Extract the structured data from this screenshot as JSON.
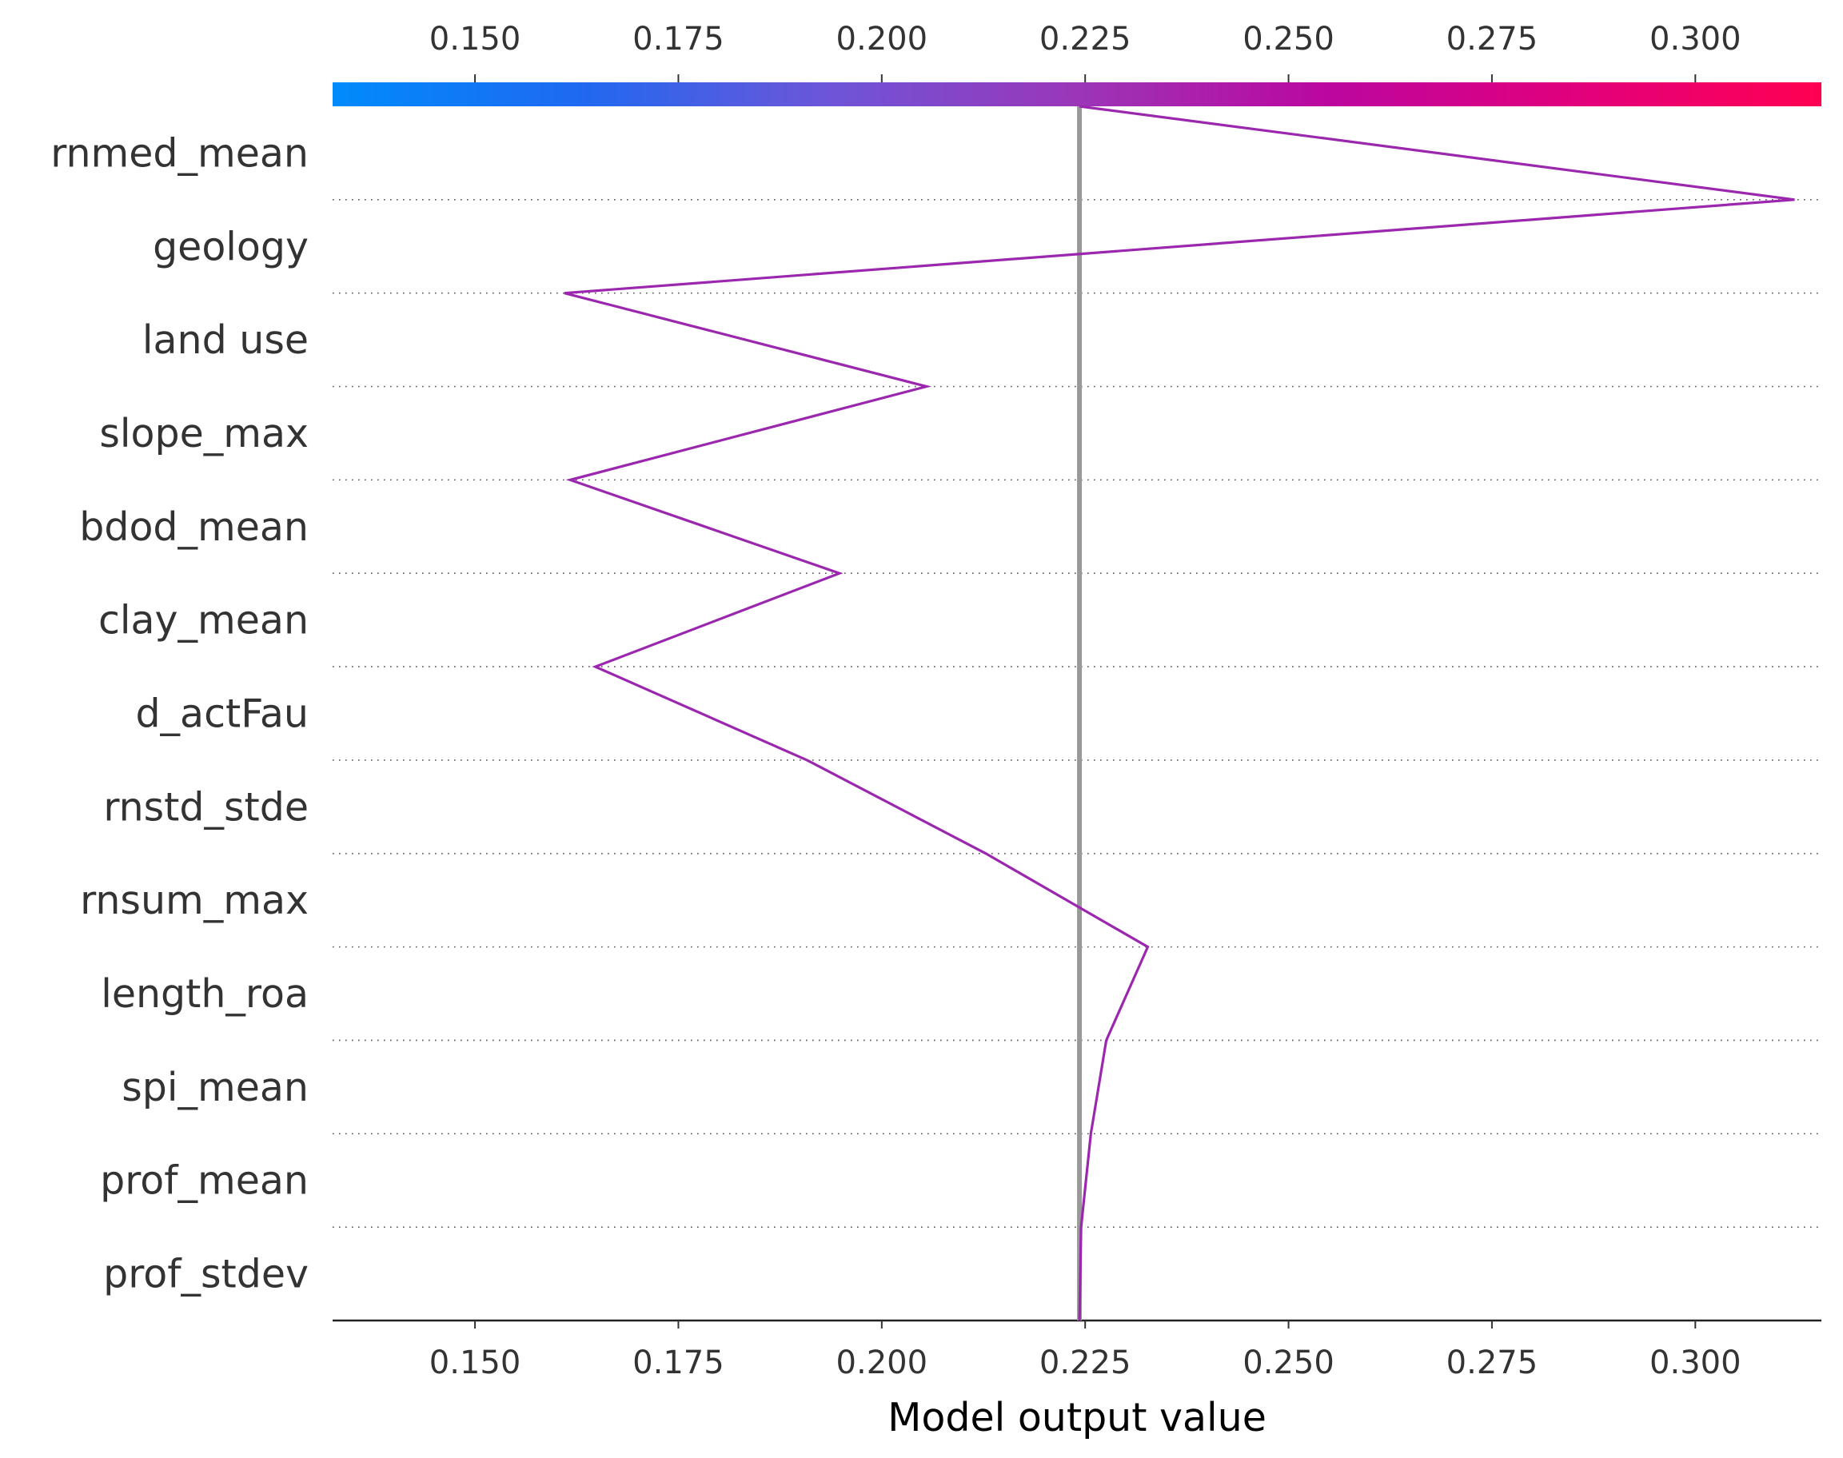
{
  "chart_data": {
    "type": "line",
    "title": "",
    "xlabel": "Model output value",
    "ylabel": "",
    "xlim": [
      0.1325,
      0.3155
    ],
    "x_ticks": [
      0.15,
      0.175,
      0.2,
      0.225,
      0.25,
      0.275,
      0.3
    ],
    "x_tick_labels": [
      "0.150",
      "0.175",
      "0.200",
      "0.225",
      "0.250",
      "0.275",
      "0.300"
    ],
    "base_value": 0.2243,
    "colorbar": {
      "position": "top",
      "colors": [
        "#008bfb",
        "#1f69f0",
        "#6e55d8",
        "#9b36b8",
        "#bb079f",
        "#e1007d",
        "#ff0052"
      ]
    },
    "features": [
      "rnmed_mean",
      "geology",
      "land use",
      "slope_max",
      "bdod_mean",
      "clay_mean",
      "d_actFau",
      "rnstd_stde",
      "rnsum_max",
      "length_roa",
      "spi_mean",
      "prof_mean",
      "prof_stdev"
    ],
    "series": [
      {
        "color": "#9b27af",
        "values": [
          0.2243,
          0.3122,
          0.161,
          0.2055,
          0.1617,
          0.1948,
          0.1648,
          0.1908,
          0.2128,
          0.2327,
          0.2276,
          0.2257,
          0.2245,
          0.2243
        ]
      }
    ],
    "grid": "dotted horizontal lines between features",
    "legend": "none"
  }
}
